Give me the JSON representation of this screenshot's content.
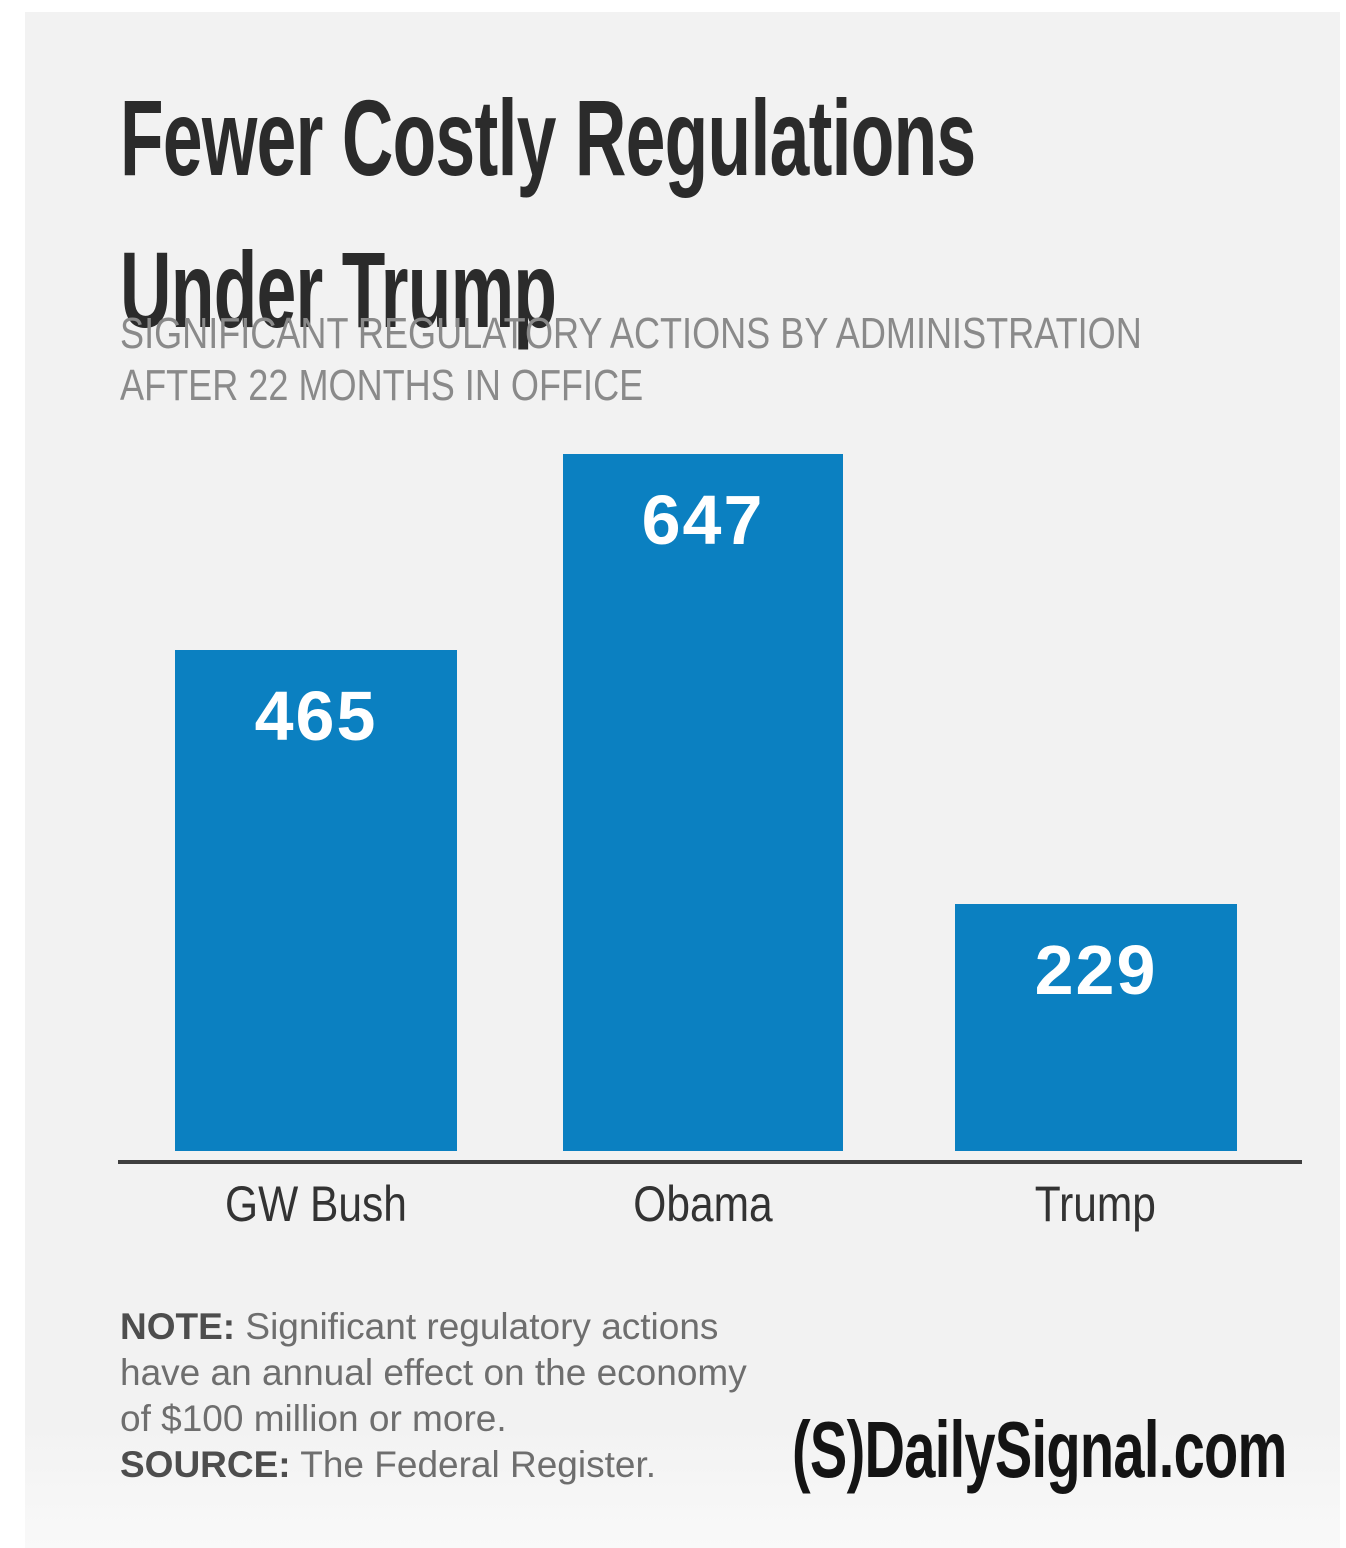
{
  "header": {
    "title_line1": "Fewer Costly Regulations",
    "title_line2": "Under Trump",
    "subtitle_line1": "SIGNIFICANT REGULATORY ACTIONS BY ADMINISTRATION",
    "subtitle_line2": "AFTER 22 MONTHS IN OFFICE"
  },
  "chart_data": {
    "type": "bar",
    "title": "Fewer Costly Regulations Under Trump",
    "subtitle": "Significant regulatory actions by administration after 22 months in office",
    "categories": [
      "GW Bush",
      "Obama",
      "Trump"
    ],
    "values": [
      465,
      647,
      229
    ],
    "value_labels": [
      "465",
      "647",
      "229"
    ],
    "ylim": [
      0,
      700
    ],
    "grid": false,
    "legend": false,
    "bar_color": "#0b80c1",
    "value_label_color": "#ffffff",
    "axis_line_color": "#3f3f3f",
    "background_color": "#f2f2f2"
  },
  "footer": {
    "note_label": "NOTE:",
    "note_line1": " Significant regulatory actions",
    "note_line2": "have an annual effect on the economy",
    "note_line3": "of $100 million or more.",
    "source_label": "SOURCE:",
    "source_text": " The Federal Register.",
    "logo_mark": "(S)",
    "logo_name": "DailySignal.com"
  }
}
